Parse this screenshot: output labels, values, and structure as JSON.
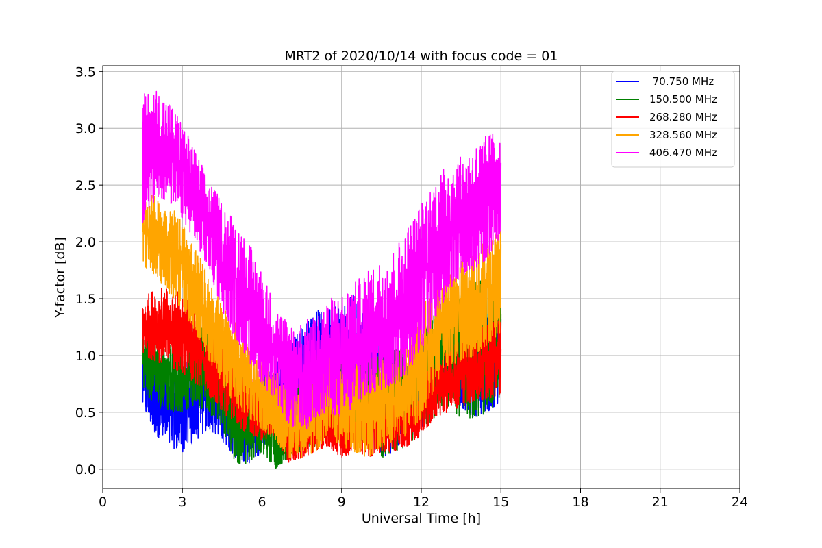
{
  "chart_data": {
    "type": "line",
    "title": "MRT2 of 2020/10/14 with focus code = 01",
    "xlabel": "Universal Time [h]",
    "ylabel": "Y-factor [dB]",
    "xlim": [
      0,
      24
    ],
    "ylim": [
      -0.17,
      3.55
    ],
    "xticks": [
      0,
      3,
      6,
      9,
      12,
      15,
      18,
      21,
      24
    ],
    "yticks": [
      0.0,
      0.5,
      1.0,
      1.5,
      2.0,
      2.5,
      3.0,
      3.5
    ],
    "grid": true,
    "legend_position": "top-right",
    "x_range_of_data": [
      1.5,
      15.0
    ],
    "series": [
      {
        "name": " 70.750 MHz",
        "color": "#0000ff",
        "envelope": {
          "x": [
            1.5,
            2.0,
            2.5,
            3.0,
            3.5,
            4.0,
            4.5,
            5.0,
            5.5,
            6.0,
            6.5,
            7.0,
            7.5,
            8.0,
            8.5,
            9.0,
            9.5,
            10.0,
            10.5,
            11.0,
            11.5,
            12.0,
            12.5,
            13.0,
            13.5,
            14.0,
            14.5,
            15.0
          ],
          "low": [
            0.55,
            0.3,
            0.2,
            0.15,
            0.25,
            0.35,
            0.25,
            0.1,
            0.05,
            0.15,
            0.5,
            0.3,
            0.3,
            0.45,
            0.4,
            0.3,
            0.25,
            0.25,
            0.1,
            0.15,
            0.25,
            0.35,
            0.55,
            0.75,
            0.55,
            0.45,
            0.5,
            0.6
          ],
          "high": [
            1.1,
            1.0,
            0.9,
            0.95,
            1.0,
            1.05,
            0.95,
            0.75,
            0.7,
            0.8,
            0.95,
            1.1,
            1.25,
            1.4,
            1.45,
            1.5,
            1.55,
            1.3,
            1.1,
            1.0,
            1.0,
            1.15,
            1.25,
            1.35,
            1.3,
            1.3,
            1.35,
            1.4
          ]
        }
      },
      {
        "name": "150.500 MHz",
        "color": "#008000",
        "envelope": {
          "x": [
            1.5,
            2.0,
            2.5,
            3.0,
            3.5,
            4.0,
            4.5,
            5.0,
            5.5,
            6.0,
            6.5,
            7.0,
            7.5,
            8.0,
            8.5,
            9.0,
            9.5,
            10.0,
            10.5,
            11.0,
            11.5,
            12.0,
            12.5,
            13.0,
            13.5,
            14.0,
            14.5,
            15.0
          ],
          "low": [
            0.7,
            0.55,
            0.5,
            0.5,
            0.55,
            0.5,
            0.35,
            0.05,
            0.05,
            0.15,
            0.0,
            0.1,
            0.15,
            0.2,
            0.3,
            0.2,
            0.2,
            0.3,
            0.1,
            0.15,
            0.2,
            0.35,
            0.45,
            0.55,
            0.45,
            0.45,
            0.5,
            0.6
          ],
          "high": [
            1.3,
            1.2,
            1.15,
            1.1,
            1.35,
            1.3,
            1.1,
            1.0,
            0.85,
            0.8,
            0.75,
            0.8,
            0.9,
            1.0,
            1.05,
            1.0,
            1.1,
            1.1,
            1.05,
            1.05,
            1.05,
            1.2,
            1.4,
            1.6,
            1.65,
            1.7,
            1.65,
            1.6
          ]
        }
      },
      {
        "name": "268.280 MHz",
        "color": "#ff0000",
        "envelope": {
          "x": [
            1.5,
            2.0,
            2.5,
            3.0,
            3.5,
            4.0,
            4.5,
            5.0,
            5.5,
            6.0,
            6.5,
            7.0,
            7.5,
            8.0,
            8.5,
            9.0,
            9.5,
            10.0,
            10.5,
            11.0,
            11.5,
            12.0,
            12.5,
            13.0,
            13.5,
            14.0,
            14.5,
            15.0
          ],
          "low": [
            1.0,
            0.95,
            0.9,
            0.85,
            0.75,
            0.65,
            0.5,
            0.4,
            0.3,
            0.25,
            0.3,
            0.05,
            0.1,
            0.15,
            0.2,
            0.1,
            0.15,
            0.1,
            0.15,
            0.15,
            0.2,
            0.3,
            0.45,
            0.5,
            0.55,
            0.6,
            0.6,
            0.65
          ],
          "high": [
            1.5,
            1.6,
            1.6,
            1.55,
            1.4,
            1.3,
            1.15,
            1.05,
            0.85,
            0.7,
            0.6,
            0.55,
            0.55,
            0.55,
            0.6,
            0.55,
            0.6,
            0.6,
            0.6,
            0.65,
            0.7,
            0.8,
            0.95,
            1.05,
            1.15,
            1.2,
            1.3,
            1.35
          ]
        }
      },
      {
        "name": "328.560 MHz",
        "color": "#ffa500",
        "envelope": {
          "x": [
            1.5,
            2.0,
            2.5,
            3.0,
            3.5,
            4.0,
            4.5,
            5.0,
            5.5,
            6.0,
            6.5,
            7.0,
            7.5,
            8.0,
            8.5,
            9.0,
            9.5,
            10.0,
            10.5,
            11.0,
            11.5,
            12.0,
            12.5,
            13.0,
            13.5,
            14.0,
            14.5,
            15.0
          ],
          "low": [
            1.8,
            1.7,
            1.55,
            1.4,
            1.2,
            0.95,
            0.75,
            0.55,
            0.45,
            0.35,
            0.25,
            0.1,
            0.1,
            0.15,
            0.3,
            0.2,
            0.15,
            0.1,
            0.2,
            0.25,
            0.3,
            0.45,
            0.7,
            0.9,
            0.95,
            1.0,
            1.1,
            1.2
          ],
          "high": [
            2.45,
            2.4,
            2.35,
            2.2,
            1.95,
            1.7,
            1.45,
            1.3,
            1.15,
            0.95,
            0.85,
            0.8,
            0.85,
            0.9,
            1.0,
            0.95,
            1.0,
            1.0,
            1.05,
            1.05,
            1.15,
            1.4,
            1.65,
            1.8,
            1.85,
            1.9,
            2.05,
            2.1
          ]
        }
      },
      {
        "name": "406.470 MHz",
        "color": "#ff00ff",
        "envelope": {
          "x": [
            1.5,
            2.0,
            2.5,
            3.0,
            3.5,
            4.0,
            4.5,
            5.0,
            5.5,
            6.0,
            6.5,
            7.0,
            7.5,
            8.0,
            8.5,
            9.0,
            9.5,
            10.0,
            10.5,
            11.0,
            11.5,
            12.0,
            12.5,
            13.0,
            13.5,
            14.0,
            14.5,
            15.0
          ],
          "low": [
            2.1,
            2.4,
            2.35,
            2.2,
            2.0,
            1.75,
            1.4,
            1.15,
            0.95,
            0.75,
            0.6,
            0.4,
            0.3,
            0.45,
            0.5,
            0.45,
            0.55,
            0.65,
            0.7,
            0.75,
            0.85,
            1.05,
            1.3,
            1.55,
            1.7,
            1.75,
            1.85,
            2.05
          ],
          "high": [
            3.3,
            3.35,
            3.25,
            3.05,
            2.8,
            2.55,
            2.35,
            2.2,
            2.0,
            1.75,
            1.45,
            1.3,
            1.3,
            1.35,
            1.5,
            1.55,
            1.65,
            1.75,
            1.85,
            1.95,
            2.15,
            2.35,
            2.55,
            2.7,
            2.75,
            2.85,
            2.95,
            3.0
          ]
        }
      }
    ]
  }
}
